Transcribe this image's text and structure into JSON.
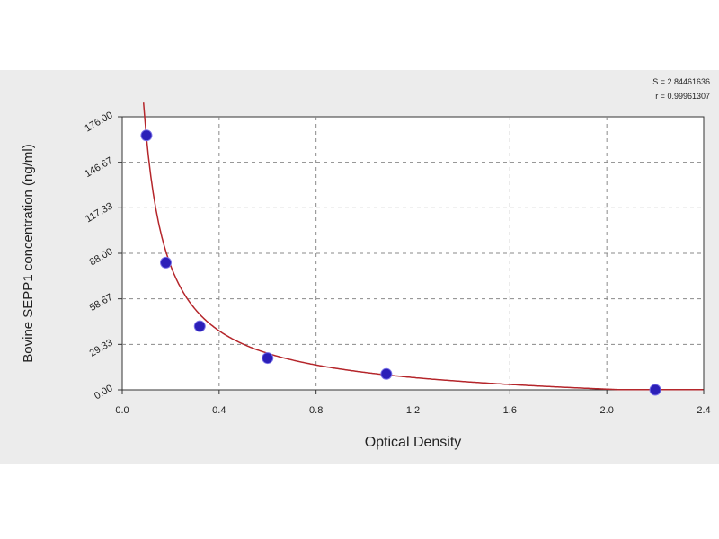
{
  "chart_data": {
    "type": "scatter",
    "title": "",
    "xlabel": "Optical Density",
    "ylabel": "Bovine SEPP1  concentration (ng/ml)",
    "xlim": [
      0.0,
      2.4
    ],
    "ylim": [
      0.0,
      176.0
    ],
    "x_ticks": [
      "0.0",
      "0.4",
      "0.8",
      "1.2",
      "1.6",
      "2.0",
      "2.4"
    ],
    "y_ticks": [
      "0.00",
      "29.33",
      "58.67",
      "88.00",
      "117.33",
      "146.67",
      "176.00"
    ],
    "grid": true,
    "fit_stats": {
      "s_label": "S = 2.84461636",
      "r_label": "r = 0.99961307"
    },
    "series": [
      {
        "marker_color": "#2b1fb8",
        "curve_color": "#b5262b",
        "points": [
          {
            "x": 0.1,
            "y": 164.0
          },
          {
            "x": 0.18,
            "y": 82.0
          },
          {
            "x": 0.32,
            "y": 41.0
          },
          {
            "x": 0.6,
            "y": 20.5
          },
          {
            "x": 1.09,
            "y": 10.25
          },
          {
            "x": 2.2,
            "y": 0.0
          }
        ]
      }
    ]
  }
}
